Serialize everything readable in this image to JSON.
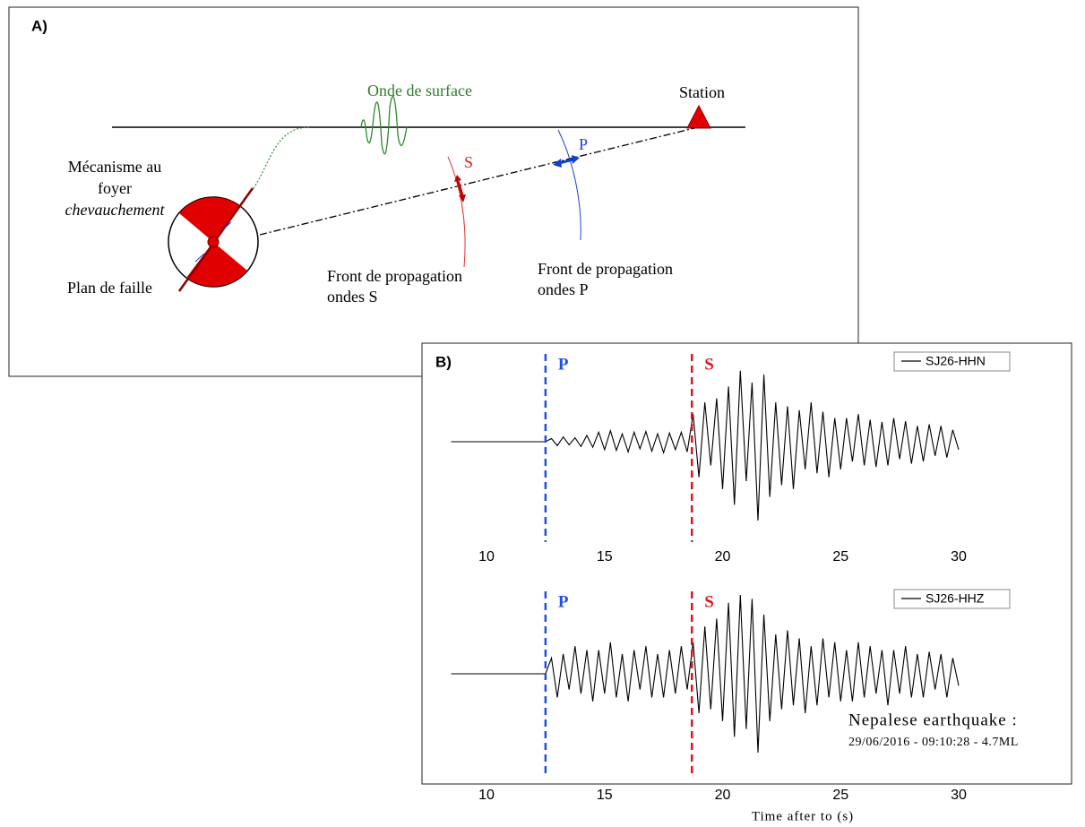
{
  "panel_a": {
    "label": "A)",
    "surface_wave": "Onde de surface",
    "station": "Station",
    "mechanism": [
      "Mécanisme au",
      "foyer",
      "chevauchement"
    ],
    "fault_plane": "Plan de faille",
    "s_front": [
      "Front de propagation",
      "ondes S"
    ],
    "p_front": [
      "Front de propagation",
      "ondes P"
    ],
    "s_label": "S",
    "p_label": "P"
  },
  "chart_data": [
    {
      "type": "line",
      "panel_label": "B)",
      "x": [
        8.5,
        12.5,
        12.75,
        13,
        13.25,
        13.5,
        13.75,
        14,
        14.25,
        14.5,
        14.75,
        15,
        15.25,
        15.5,
        15.75,
        16,
        16.25,
        16.5,
        16.75,
        17,
        17.25,
        17.5,
        17.75,
        18,
        18.25,
        18.5,
        18.75,
        19,
        19.25,
        19.5,
        19.75,
        20,
        20.25,
        20.5,
        20.75,
        21,
        21.25,
        21.5,
        21.75,
        22,
        22.25,
        22.5,
        22.75,
        23,
        23.25,
        23.5,
        23.75,
        24,
        24.25,
        24.5,
        24.75,
        25,
        25.25,
        25.5,
        25.75,
        26,
        26.25,
        26.5,
        26.75,
        27,
        27.25,
        27.5,
        27.75,
        28,
        28.25,
        28.5,
        28.75,
        29,
        29.25,
        29.5,
        29.75,
        30
      ],
      "series": [
        {
          "name": "SJ26-HHN",
          "color": "#000000",
          "values": [
            0,
            0,
            0.04,
            -0.05,
            0.06,
            -0.04,
            0.05,
            -0.06,
            0.08,
            -0.07,
            0.12,
            -0.1,
            0.14,
            -0.11,
            0.1,
            -0.13,
            0.12,
            -0.09,
            0.13,
            -0.12,
            0.1,
            -0.14,
            0.11,
            -0.1,
            0.12,
            -0.13,
            0.35,
            -0.45,
            0.5,
            -0.3,
            0.55,
            -0.6,
            0.7,
            -0.8,
            0.9,
            -0.5,
            0.75,
            -1,
            0.85,
            -0.7,
            0.5,
            -0.55,
            0.45,
            -0.6,
            0.4,
            -0.35,
            0.5,
            -0.4,
            0.38,
            -0.45,
            0.3,
            -0.35,
            0.3,
            -0.25,
            0.35,
            -0.3,
            0.28,
            -0.32,
            0.25,
            -0.3,
            0.3,
            -0.22,
            0.26,
            -0.28,
            0.2,
            -0.25,
            0.22,
            -0.18,
            0.2,
            -0.2,
            0.15,
            -0.1
          ]
        }
      ],
      "markers": [
        {
          "label": "P",
          "x": 12.5,
          "color": "#1f4fe0"
        },
        {
          "label": "S",
          "x": 18.7,
          "color": "#e0141e"
        }
      ],
      "xlim": [
        8,
        31
      ],
      "xticks": [
        10,
        15,
        20,
        25,
        30
      ],
      "ylim": [
        -1,
        1
      ],
      "legend": "upper right"
    },
    {
      "type": "line",
      "x": [
        8.5,
        12.5,
        12.75,
        13,
        13.25,
        13.5,
        13.75,
        14,
        14.25,
        14.5,
        14.75,
        15,
        15.25,
        15.5,
        15.75,
        16,
        16.25,
        16.5,
        16.75,
        17,
        17.25,
        17.5,
        17.75,
        18,
        18.25,
        18.5,
        18.75,
        19,
        19.25,
        19.5,
        19.75,
        20,
        20.25,
        20.5,
        20.75,
        21,
        21.25,
        21.5,
        21.75,
        22,
        22.25,
        22.5,
        22.75,
        23,
        23.25,
        23.5,
        23.75,
        24,
        24.25,
        24.5,
        24.75,
        25,
        25.25,
        25.5,
        25.75,
        26,
        26.25,
        26.5,
        26.75,
        27,
        27.25,
        27.5,
        27.75,
        28,
        28.25,
        28.5,
        28.75,
        29,
        29.25,
        29.5,
        29.75,
        30
      ],
      "series": [
        {
          "name": "SJ26-HHZ",
          "color": "#000000",
          "values": [
            0,
            0,
            0.2,
            -0.3,
            0.25,
            -0.2,
            0.35,
            -0.25,
            0.3,
            -0.35,
            0.3,
            -0.25,
            0.4,
            -0.3,
            0.25,
            -0.35,
            0.3,
            -0.2,
            0.35,
            -0.3,
            0.25,
            -0.3,
            0.3,
            -0.25,
            0.35,
            -0.2,
            0.4,
            -0.5,
            0.6,
            -0.45,
            0.7,
            -0.6,
            0.9,
            -0.8,
            1,
            -0.7,
            0.95,
            -1,
            0.75,
            -0.6,
            0.5,
            -0.45,
            0.55,
            -0.4,
            0.45,
            -0.5,
            0.35,
            -0.4,
            0.45,
            -0.3,
            0.4,
            -0.35,
            0.3,
            -0.35,
            0.4,
            -0.3,
            0.35,
            -0.25,
            0.3,
            -0.4,
            0.3,
            -0.25,
            0.35,
            -0.3,
            0.25,
            -0.3,
            0.28,
            -0.2,
            0.25,
            -0.3,
            0.2,
            -0.15
          ]
        }
      ],
      "markers": [
        {
          "label": "P",
          "x": 12.5,
          "color": "#1f4fe0"
        },
        {
          "label": "S",
          "x": 18.7,
          "color": "#e0141e"
        }
      ],
      "xlim": [
        8,
        31
      ],
      "xticks": [
        10,
        15,
        20,
        25,
        30
      ],
      "ylim": [
        -1,
        1
      ],
      "legend": "upper right",
      "annotation": [
        "Nepalese earthquake :",
        "29/06/2016 - 09:10:28 - 4.7ML"
      ],
      "xlabel": "Time after to (s)"
    }
  ]
}
